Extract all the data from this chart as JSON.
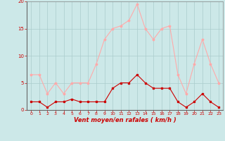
{
  "x": [
    0,
    1,
    2,
    3,
    4,
    5,
    6,
    7,
    8,
    9,
    10,
    11,
    12,
    13,
    14,
    15,
    16,
    17,
    18,
    19,
    20,
    21,
    22,
    23
  ],
  "wind_avg": [
    1.5,
    1.5,
    0.5,
    1.5,
    1.5,
    2.0,
    1.5,
    1.5,
    1.5,
    1.5,
    4.0,
    5.0,
    5.0,
    6.5,
    5.0,
    4.0,
    4.0,
    4.0,
    1.5,
    0.5,
    1.5,
    3.0,
    1.5,
    0.5
  ],
  "wind_gust": [
    6.5,
    6.5,
    3.0,
    5.0,
    3.0,
    5.0,
    5.0,
    5.0,
    8.5,
    13.0,
    15.0,
    15.5,
    16.5,
    19.5,
    15.0,
    13.0,
    15.0,
    15.5,
    6.5,
    3.0,
    8.5,
    13.0,
    8.5,
    5.0
  ],
  "avg_color": "#cc0000",
  "gust_color": "#ffaaaa",
  "bg_color": "#cce8e8",
  "grid_color": "#aacccc",
  "xlabel": "Vent moyen/en rafales ( km/h )",
  "ylim": [
    0,
    20
  ],
  "xlim_min": -0.5,
  "xlim_max": 23.5,
  "yticks": [
    0,
    5,
    10,
    15,
    20
  ],
  "xticks": [
    0,
    1,
    2,
    3,
    4,
    5,
    6,
    7,
    8,
    9,
    10,
    11,
    12,
    13,
    14,
    15,
    16,
    17,
    18,
    19,
    20,
    21,
    22,
    23
  ],
  "tick_color": "#cc0000",
  "label_color": "#cc0000",
  "spine_color": "#888888",
  "line_width": 0.8,
  "marker_size": 2.5
}
